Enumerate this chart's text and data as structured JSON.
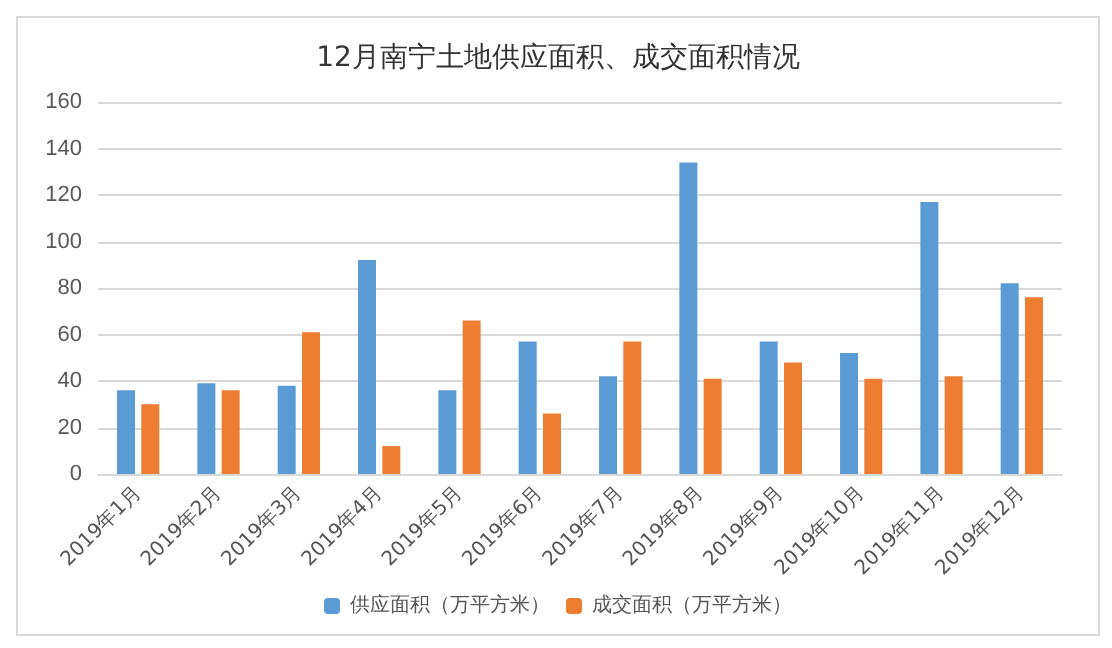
{
  "chart_data": {
    "type": "bar",
    "title": "12月南宁土地供应面积、成交面积情况",
    "categories": [
      "2019年1月",
      "2019年2月",
      "2019年3月",
      "2019年4月",
      "2019年5月",
      "2019年6月",
      "2019年7月",
      "2019年8月",
      "2019年9月",
      "2019年10月",
      "2019年11月",
      "2019年12月"
    ],
    "series": [
      {
        "name": "供应面积（万平方米）",
        "color": "#5b9bd5",
        "values": [
          36,
          39,
          38,
          92,
          36,
          57,
          42,
          134,
          57,
          52,
          117,
          82
        ]
      },
      {
        "name": "成交面积（万平方米）",
        "color": "#ed7d31",
        "values": [
          30,
          36,
          61,
          12,
          66,
          26,
          57,
          41,
          48,
          41,
          42,
          76
        ]
      }
    ],
    "ylim": [
      0,
      160
    ],
    "yticks": [
      0,
      20,
      40,
      60,
      80,
      100,
      120,
      140,
      160
    ],
    "grid": "y",
    "legend": "bottom"
  }
}
